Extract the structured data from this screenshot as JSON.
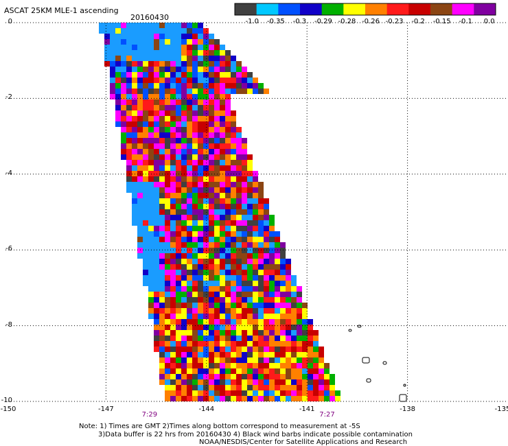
{
  "header": {
    "title": "ASCAT 25KM MLE-1 ascending",
    "date": "20160430"
  },
  "colorbar": {
    "colors": [
      "#404040",
      "#00c8ff",
      "#0050ff",
      "#1000c8",
      "#00b000",
      "#ffff00",
      "#ff8000",
      "#ff1a1a",
      "#c80000",
      "#8b4513",
      "#ff00ff",
      "#8000a0"
    ],
    "labels": [
      "-1.0",
      "-0.35",
      "-0.3",
      "-0.29",
      "-0.28",
      "-0.26",
      "-0.23",
      "-0.2",
      "-0.15",
      "-0.1",
      "0.0"
    ]
  },
  "axes": {
    "y_ticks": [
      "0",
      "-2",
      "-4",
      "-6",
      "-8",
      "-10"
    ],
    "x_ticks": [
      "-150",
      "-147",
      "-144",
      "-141",
      "-138",
      "-135"
    ],
    "time_labels": [
      "7:29",
      "7:27"
    ]
  },
  "notes": {
    "line1": "Note: 1) Times are GMT 2)Times along bottom correspond to measurement at -5S",
    "line2": "3)Data buffer is 22 hrs from 20160430 4) Black wind barbs indicate possible contamination",
    "line3": "NOAA/NESDIS/Center for Satellite Applications and Research"
  },
  "map": {
    "lon_range": [
      -150,
      -135
    ],
    "lat_range": [
      -10,
      0
    ],
    "swath_palette": [
      "#404040",
      "#1a9cff",
      "#0050ff",
      "#1000c8",
      "#00b000",
      "#ffff00",
      "#ff8000",
      "#ff1a1a",
      "#c80000",
      "#8b4513",
      "#ff00ff",
      "#8000a0"
    ]
  }
}
